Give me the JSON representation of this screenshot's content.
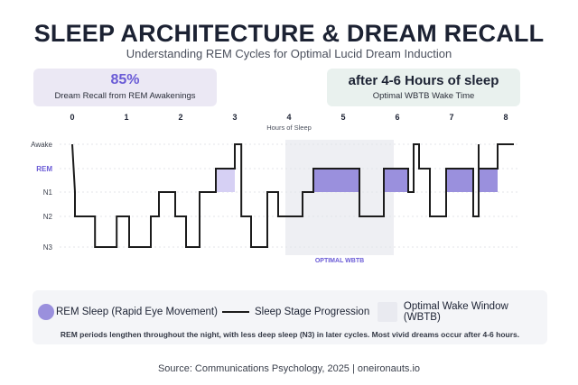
{
  "header": {
    "title": "SLEEP ARCHITECTURE & DREAM RECALL",
    "subtitle": "Understanding REM Cycles for Optimal Lucid Dream Induction"
  },
  "stats": {
    "left": {
      "value": "85%",
      "label": "Dream Recall from REM Awakenings"
    },
    "right": {
      "value": "after 4-6 Hours of sleep",
      "label": "Optimal WBTB Wake Time"
    }
  },
  "chart_data": {
    "type": "line",
    "xlabel": "Hours of Sleep",
    "ylabel": "",
    "x_ticks": [
      0,
      1,
      2,
      3,
      4,
      5,
      6,
      7,
      8
    ],
    "xlim": [
      0,
      8
    ],
    "y_categories": [
      "Awake",
      "REM",
      "N1",
      "N2",
      "N3"
    ],
    "series": [
      {
        "name": "Sleep Stage Progression",
        "points": [
          [
            0.0,
            "Awake"
          ],
          [
            0.05,
            "N1"
          ],
          [
            0.05,
            "N2"
          ],
          [
            0.42,
            "N2"
          ],
          [
            0.42,
            "N3"
          ],
          [
            0.82,
            "N3"
          ],
          [
            0.82,
            "N2"
          ],
          [
            1.05,
            "N2"
          ],
          [
            1.05,
            "N3"
          ],
          [
            1.45,
            "N3"
          ],
          [
            1.45,
            "N2"
          ],
          [
            1.6,
            "N2"
          ],
          [
            1.6,
            "N1"
          ],
          [
            1.9,
            "N1"
          ],
          [
            1.9,
            "N2"
          ],
          [
            2.1,
            "N2"
          ],
          [
            2.1,
            "N3"
          ],
          [
            2.35,
            "N3"
          ],
          [
            2.35,
            "N1"
          ],
          [
            2.65,
            "N1"
          ],
          [
            2.65,
            "REM"
          ],
          [
            3.0,
            "REM"
          ],
          [
            3.0,
            "Awake"
          ],
          [
            3.12,
            "Awake"
          ],
          [
            3.12,
            "N1"
          ],
          [
            3.12,
            "N2"
          ],
          [
            3.3,
            "N2"
          ],
          [
            3.3,
            "N3"
          ],
          [
            3.6,
            "N3"
          ],
          [
            3.6,
            "N1"
          ],
          [
            3.8,
            "N1"
          ],
          [
            3.8,
            "N2"
          ],
          [
            4.0,
            "N2"
          ],
          [
            4.0,
            "N2"
          ],
          [
            4.25,
            "N2"
          ],
          [
            4.25,
            "N1"
          ],
          [
            4.45,
            "N1"
          ],
          [
            4.45,
            "REM"
          ],
          [
            5.3,
            "REM"
          ],
          [
            5.3,
            "N1"
          ],
          [
            5.3,
            "N2"
          ],
          [
            5.75,
            "N2"
          ],
          [
            5.75,
            "N1"
          ],
          [
            5.75,
            "REM"
          ],
          [
            6.2,
            "REM"
          ],
          [
            6.2,
            "N1"
          ],
          [
            6.3,
            "N1"
          ],
          [
            6.3,
            "Awake"
          ],
          [
            6.4,
            "Awake"
          ],
          [
            6.4,
            "REM"
          ],
          [
            6.6,
            "REM"
          ],
          [
            6.6,
            "N2"
          ],
          [
            6.9,
            "N2"
          ],
          [
            6.9,
            "REM"
          ],
          [
            7.4,
            "REM"
          ],
          [
            7.4,
            "N2"
          ],
          [
            7.5,
            "N2"
          ],
          [
            7.5,
            "Awake"
          ],
          [
            7.5,
            "REM"
          ],
          [
            7.85,
            "REM"
          ],
          [
            7.85,
            "Awake"
          ],
          [
            8.15,
            "Awake"
          ]
        ]
      }
    ],
    "rem_periods": [
      {
        "start": 2.65,
        "end": 3.0,
        "shade": "light"
      },
      {
        "start": 4.45,
        "end": 5.3,
        "shade": "dark"
      },
      {
        "start": 5.75,
        "end": 6.2,
        "shade": "dark"
      },
      {
        "start": 6.9,
        "end": 7.4,
        "shade": "dark"
      },
      {
        "start": 7.5,
        "end": 7.85,
        "shade": "dark"
      }
    ],
    "wbtb_window": {
      "start": 4.0,
      "end": 6.0,
      "label": "OPTIMAL WBTB"
    },
    "grid": "horizontal dashed",
    "colors": {
      "line": "#1c1c1c",
      "rem_dark": "#9a90dd",
      "rem_light": "#d6d0f4",
      "wbtb": "#eeeff3",
      "rem_label": "#6a5bd6",
      "wbtb_label": "#6a5bd6"
    }
  },
  "legend": {
    "items": [
      {
        "label": "REM Sleep (Rapid Eye Movement)",
        "icon": "purple-circle"
      },
      {
        "label": "Sleep Stage Progression",
        "icon": "black-line"
      },
      {
        "label": "Optimal Wake Window (WBTB)",
        "icon": "grey-square"
      }
    ],
    "note": "REM periods lengthen throughout the night, with less deep sleep (N3) in later cycles. Most vivid dreams occur after 4-6 hours."
  },
  "footer": {
    "source": "Source: Communications Psychology, 2025 | oneironauts.io"
  }
}
